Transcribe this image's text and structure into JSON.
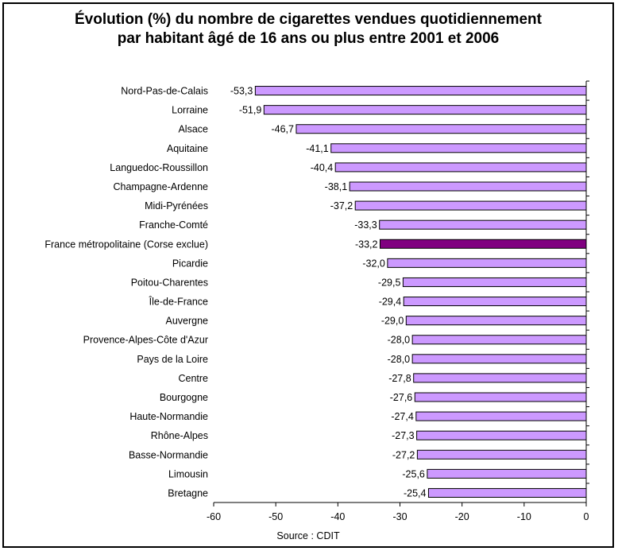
{
  "chart_data": {
    "type": "bar",
    "orientation": "horizontal",
    "title_line1": "Évolution (%) du nombre de cigarettes vendues quotidiennement",
    "title_line2": "par habitant âgé de 16 ans ou plus entre 2001 et 2006",
    "categories": [
      "Nord-Pas-de-Calais",
      "Lorraine",
      "Alsace",
      "Aquitaine",
      "Languedoc-Roussillon",
      "Champagne-Ardenne",
      "Midi-Pyrénées",
      "Franche-Comté",
      "France métropolitaine (Corse exclue)",
      "Picardie",
      "Poitou-Charentes",
      "Île-de-France",
      "Auvergne",
      "Provence-Alpes-Côte d'Azur",
      "Pays de la Loire",
      "Centre",
      "Bourgogne",
      "Haute-Normandie",
      "Rhône-Alpes",
      "Basse-Normandie",
      "Limousin",
      "Bretagne"
    ],
    "values": [
      -53.3,
      -51.9,
      -46.7,
      -41.1,
      -40.4,
      -38.1,
      -37.2,
      -33.3,
      -33.2,
      -32.0,
      -29.5,
      -29.4,
      -29.0,
      -28.0,
      -28.0,
      -27.8,
      -27.6,
      -27.4,
      -27.3,
      -27.2,
      -25.6,
      -25.4
    ],
    "labels": [
      "-53,3",
      "-51,9",
      "-46,7",
      "-41,1",
      "-40,4",
      "-38,1",
      "-37,2",
      "-33,3",
      "-33,2",
      "-32,0",
      "-29,5",
      "-29,4",
      "-29,0",
      "-28,0",
      "-28,0",
      "-27,8",
      "-27,6",
      "-27,4",
      "-27,3",
      "-27,2",
      "-25,6",
      "-25,4"
    ],
    "highlight_index": 8,
    "xlim": [
      -60,
      0
    ],
    "xticks": [
      -60,
      -50,
      -40,
      -30,
      -20,
      -10,
      0
    ],
    "grid": false,
    "legend": "none",
    "colors": {
      "bar": "#cc99ff",
      "highlight": "#800080",
      "border": "#000000"
    },
    "source": "Source : CDIT"
  }
}
